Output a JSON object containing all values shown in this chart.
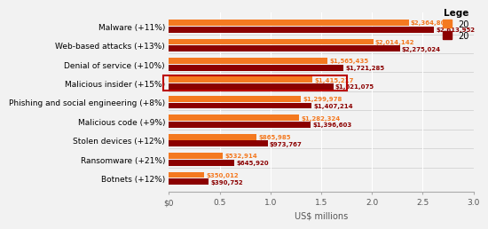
{
  "categories": [
    "Malware (+11%)",
    "Web-based attacks (+13%)",
    "Denial of service (+10%)",
    "Malicious insider (+15%)",
    "Phishing and social engineering (+8%)",
    "Malicious code (+9%)",
    "Stolen devices (+12%)",
    "Ransomware (+21%)",
    "Botnets (+12%)"
  ],
  "values_2017": [
    2364806,
    2014142,
    1565435,
    1415217,
    1299978,
    1282324,
    865985,
    532914,
    350012
  ],
  "values_2018": [
    2613952,
    2275024,
    1721285,
    1621075,
    1407214,
    1396603,
    973767,
    645920,
    390752
  ],
  "labels_2017": [
    "$2,364,806",
    "$2,014,142",
    "$1,565,435",
    "$1,415,217",
    "$1,299,978",
    "$1,282,324",
    "$865,985",
    "$532,914",
    "$350,012"
  ],
  "labels_2018": [
    "$2,613,952",
    "$2,275,024",
    "$1,721,285",
    "$1,621,075",
    "$1,407,214",
    "$1,396,603",
    "$973,767",
    "$645,920",
    "$390,752"
  ],
  "color_2017": "#F47920",
  "color_2018": "#8B0000",
  "legend_label_2017": "20",
  "legend_label_2018": "20",
  "xlabel": "US$ millions",
  "xlim_max": 3000000,
  "xticks": [
    0,
    500000,
    1000000,
    1500000,
    2000000,
    2500000,
    3000000
  ],
  "xtick_labels": [
    "$0",
    "0.5",
    "1.0",
    "1.5",
    "2.0",
    "2.5",
    "3.0"
  ],
  "highlighted_index": 3,
  "highlight_color": "#BB0000",
  "bg_color": "#F2F2F2",
  "divider_color": "#CCCCCC",
  "bar_height": 0.32,
  "bar_gap": 0.04,
  "label_fontsize": 5.0,
  "cat_fontsize": 6.5,
  "axis_fontsize": 7,
  "tick_fontsize": 6.5
}
